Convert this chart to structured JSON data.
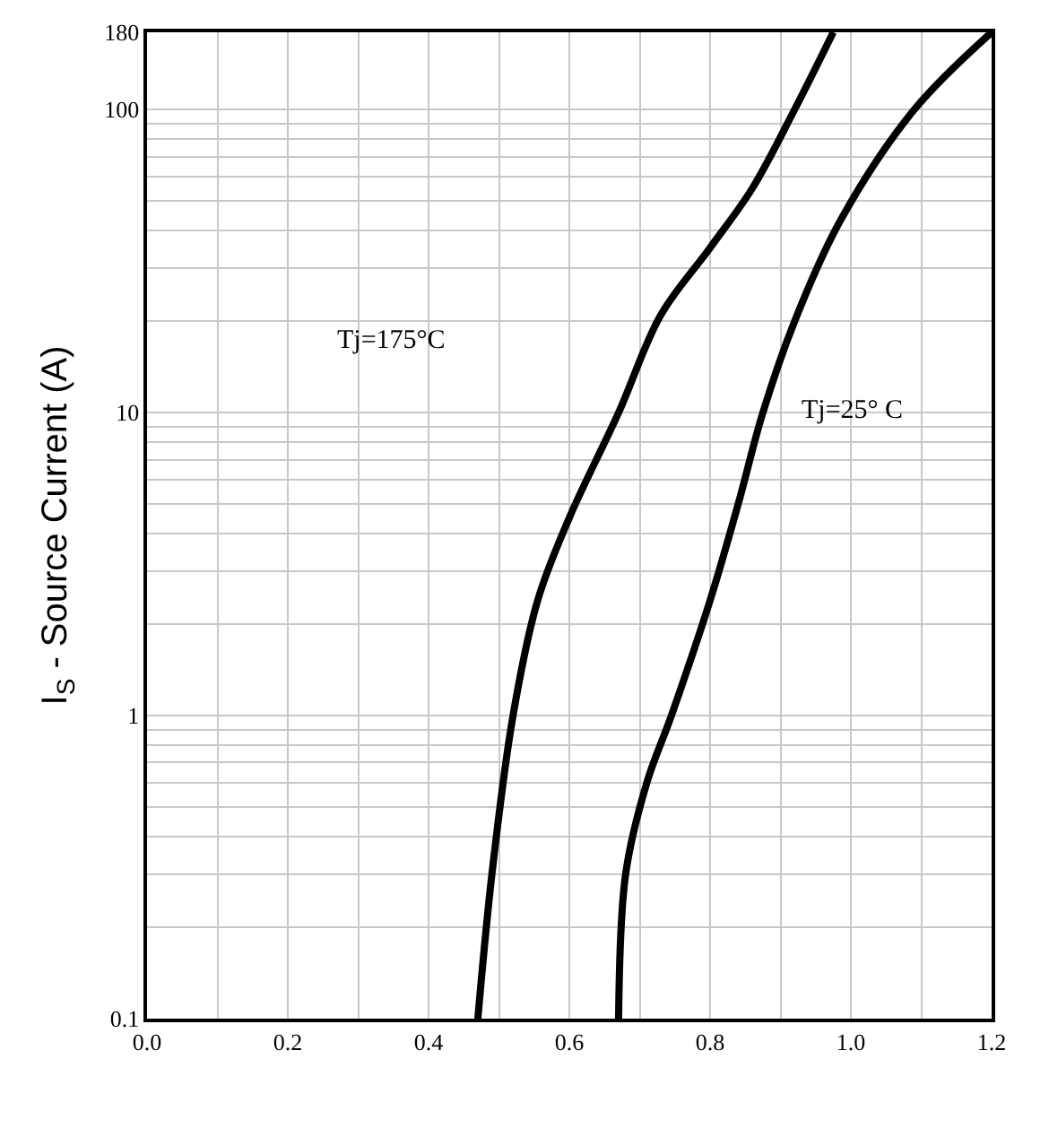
{
  "chart_data": {
    "type": "line",
    "ylabel": "I$_{S}$ - Source Current (A)",
    "log": "y",
    "grid": true,
    "legend": false,
    "marker": "none",
    "line_style": "solid",
    "xlim": [
      0,
      1.2
    ],
    "xticks": [
      {
        "value": 0,
        "label": "0.0"
      },
      0.2,
      0.4,
      0.6,
      0.8,
      {
        "value": 1,
        "label": "1.0"
      },
      1.2
    ],
    "ylim": [
      0.1,
      180
    ],
    "yticks": [
      0.1,
      1,
      10,
      100,
      180
    ],
    "series": [
      {
        "color": "#000000",
        "x": [
          0.47,
          0.49,
          0.52,
          0.555,
          0.6,
          0.67,
          0.73,
          0.8,
          0.86,
          0.92,
          0.975
        ],
        "values": [
          0.1,
          0.3,
          1,
          2.4,
          4.5,
          10,
          21,
          35,
          55,
          100,
          180
        ]
      },
      {
        "color": "#000000",
        "x": [
          0.67,
          0.68,
          0.71,
          0.745,
          0.8,
          0.84,
          0.875,
          0.92,
          0.985,
          1.09,
          1.2
        ],
        "values": [
          0.1,
          0.3,
          0.6,
          1,
          2.4,
          5,
          10,
          20,
          43,
          100,
          180
        ]
      }
    ],
    "annotations": [
      "Tj=175°C",
      "Tj=25° C"
    ]
  }
}
